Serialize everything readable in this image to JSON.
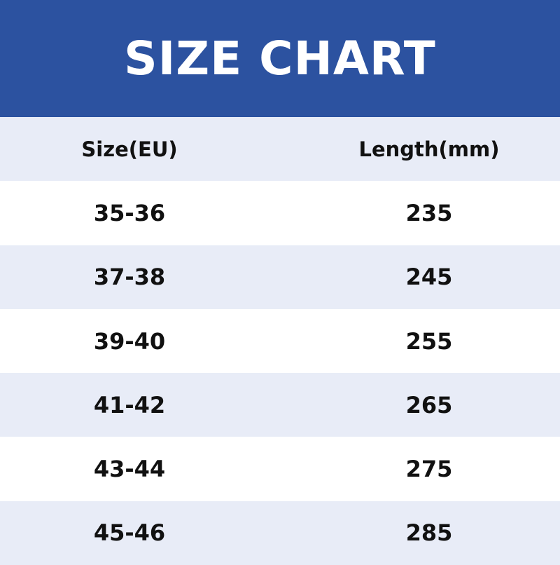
{
  "title": "SIZE CHART",
  "colors": {
    "header_bg": "#2C52A0",
    "band_bg": "#E8ECF7",
    "text": "#111111"
  },
  "columns": [
    "Size(EU)",
    "Length(mm)"
  ],
  "rows": [
    {
      "size": "35-36",
      "length": "235"
    },
    {
      "size": "37-38",
      "length": "245"
    },
    {
      "size": "39-40",
      "length": "255"
    },
    {
      "size": "41-42",
      "length": "265"
    },
    {
      "size": "43-44",
      "length": "275"
    },
    {
      "size": "45-46",
      "length": "285"
    }
  ]
}
